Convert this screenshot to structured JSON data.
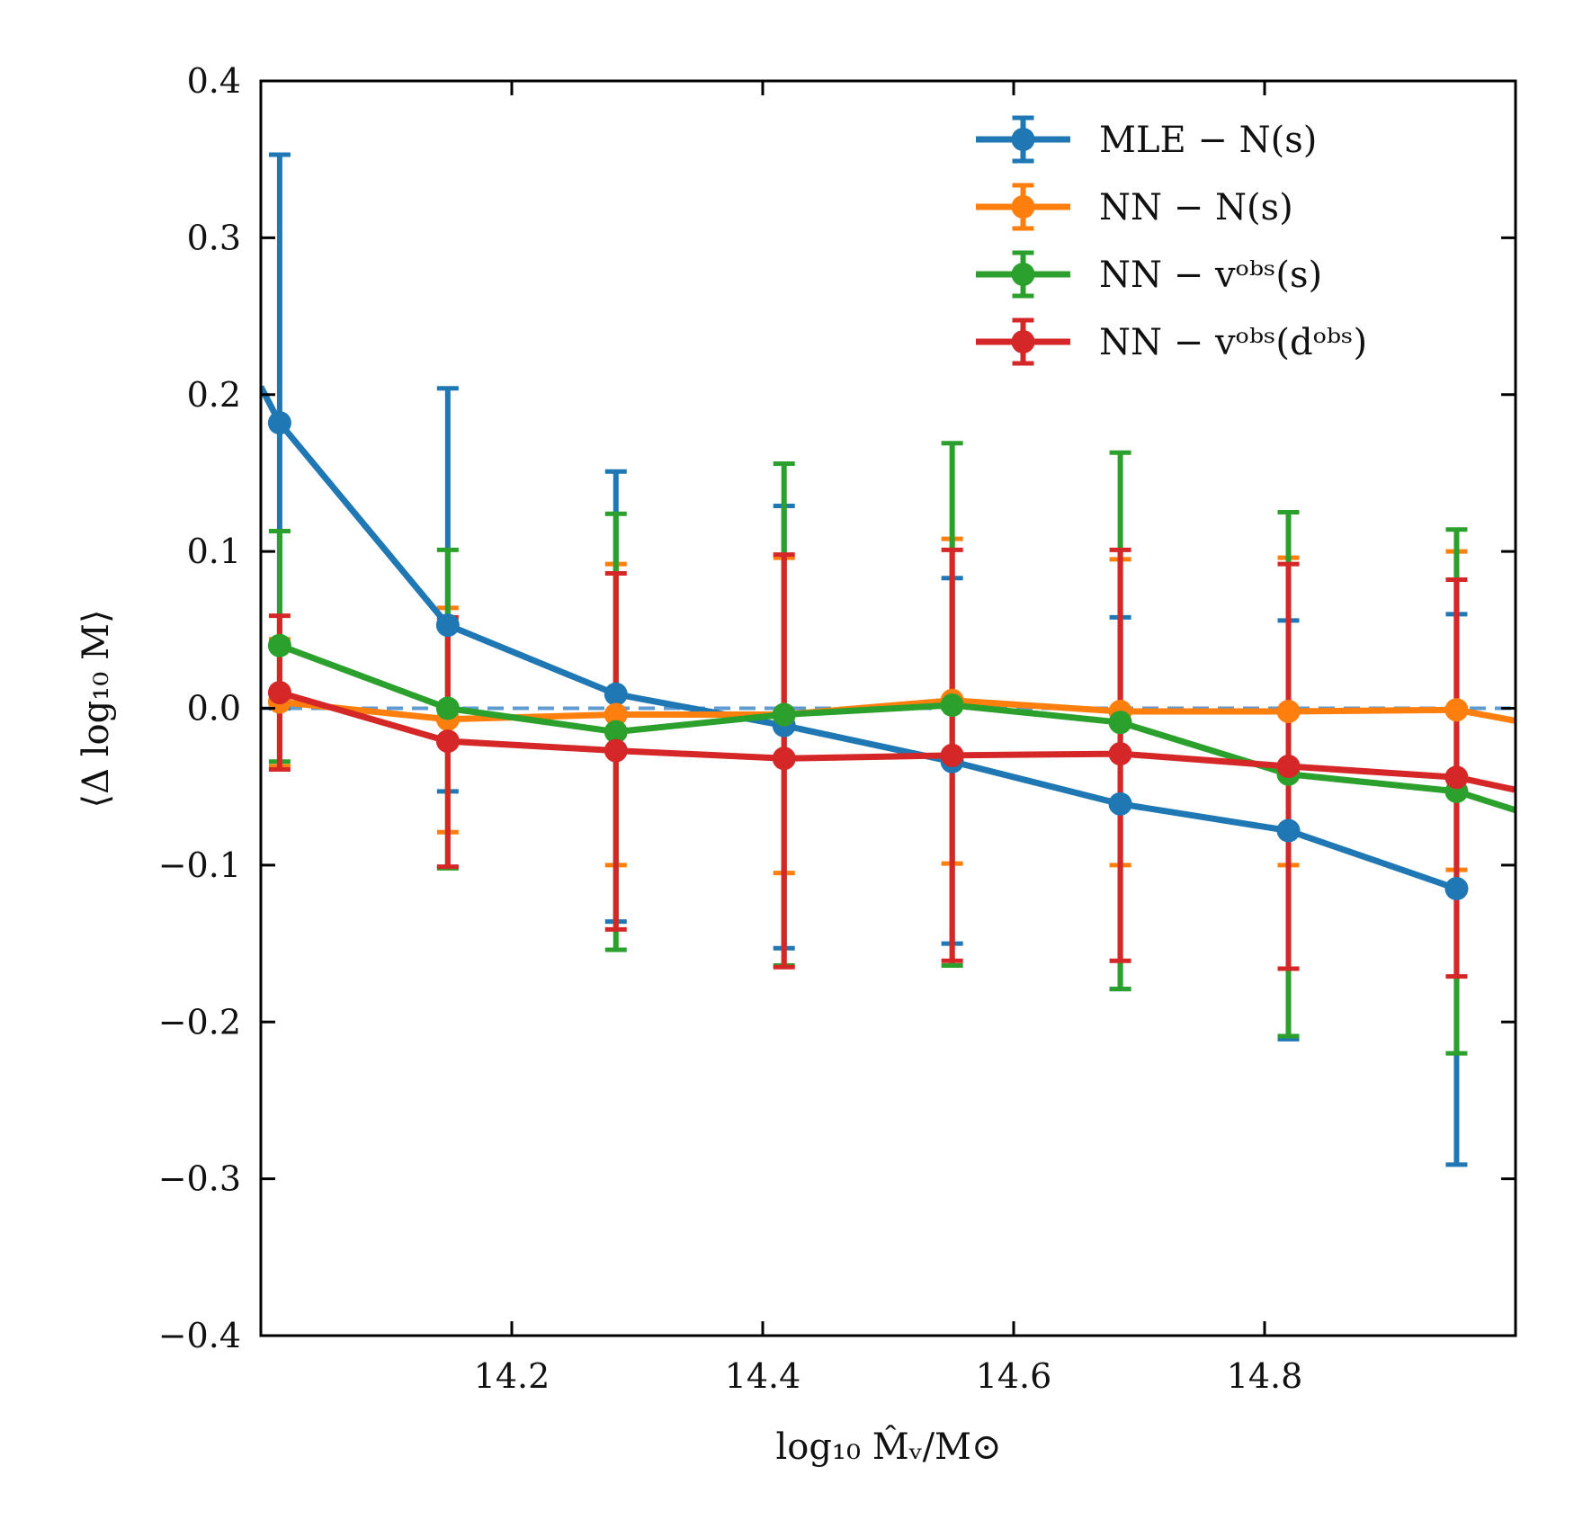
{
  "chart_data": {
    "type": "line",
    "title": "",
    "xlabel": "log₁₀ M̂ᵥ/M⊙",
    "ylabel": "⟨Δ log₁₀ M⟩",
    "xlim": [
      14.0,
      15.0
    ],
    "ylim": [
      -0.4,
      0.4
    ],
    "xticks": [
      14.2,
      14.4,
      14.6,
      14.8
    ],
    "xtick_labels": [
      "14.2",
      "14.4",
      "14.6",
      "14.8"
    ],
    "yticks": [
      -0.4,
      -0.3,
      -0.2,
      -0.1,
      0.0,
      0.1,
      0.2,
      0.3,
      0.4
    ],
    "ytick_labels": [
      "−0.4",
      "−0.3",
      "−0.2",
      "−0.1",
      "0.0",
      "0.1",
      "0.2",
      "0.3",
      "0.4"
    ],
    "reference_line": {
      "y": 0.0,
      "style": "dashed"
    },
    "legend_position": "top-right",
    "series": [
      {
        "name": "MLE − N(s)",
        "color": "#1f77b4",
        "x": [
          14.015,
          14.149,
          14.283,
          14.417,
          14.551,
          14.685,
          14.819,
          14.953
        ],
        "y": [
          0.182,
          0.053,
          0.009,
          -0.011,
          -0.034,
          -0.061,
          -0.078,
          -0.115
        ],
        "yerr_low": [
          0.182,
          0.106,
          0.145,
          0.142,
          0.116,
          0.118,
          0.133,
          0.176
        ],
        "yerr_high": [
          0.171,
          0.151,
          0.142,
          0.14,
          0.117,
          0.119,
          0.134,
          0.175
        ],
        "line_extends_to": [
          14.0,
          0.205
        ]
      },
      {
        "name": "NN − N(s)",
        "color": "#ff7f0e",
        "x": [
          14.015,
          14.149,
          14.283,
          14.417,
          14.551,
          14.685,
          14.819,
          14.953
        ],
        "y": [
          0.004,
          -0.007,
          -0.004,
          -0.004,
          0.005,
          -0.002,
          -0.002,
          -0.001
        ],
        "yerr_low": [
          0.041,
          0.072,
          0.096,
          0.101,
          0.104,
          0.098,
          0.098,
          0.102
        ],
        "yerr_high": [
          0.04,
          0.071,
          0.096,
          0.1,
          0.103,
          0.097,
          0.098,
          0.101
        ],
        "line_extends_to": [
          15.0,
          -0.008
        ]
      },
      {
        "name": "NN − vᵒᵇˢ(s)",
        "color": "#2ca02c",
        "x": [
          14.015,
          14.149,
          14.283,
          14.417,
          14.551,
          14.685,
          14.819,
          14.953
        ],
        "y": [
          0.04,
          0.0,
          -0.015,
          -0.004,
          0.002,
          -0.009,
          -0.042,
          -0.053
        ],
        "yerr_low": [
          0.074,
          0.102,
          0.139,
          0.16,
          0.166,
          0.17,
          0.167,
          0.167
        ],
        "yerr_high": [
          0.073,
          0.101,
          0.139,
          0.16,
          0.167,
          0.172,
          0.167,
          0.167
        ],
        "line_extends_to": [
          15.0,
          -0.065
        ]
      },
      {
        "name": "NN − vᵒᵇˢ(dᵒᵇˢ)",
        "color": "#d62728",
        "x": [
          14.015,
          14.149,
          14.283,
          14.417,
          14.551,
          14.685,
          14.819,
          14.953
        ],
        "y": [
          0.01,
          -0.021,
          -0.027,
          -0.032,
          -0.03,
          -0.029,
          -0.037,
          -0.044
        ],
        "yerr_low": [
          0.049,
          0.08,
          0.114,
          0.133,
          0.131,
          0.132,
          0.129,
          0.127
        ],
        "yerr_high": [
          0.049,
          0.079,
          0.113,
          0.13,
          0.131,
          0.13,
          0.129,
          0.126
        ],
        "line_extends_to": [
          15.0,
          -0.052
        ]
      }
    ]
  }
}
